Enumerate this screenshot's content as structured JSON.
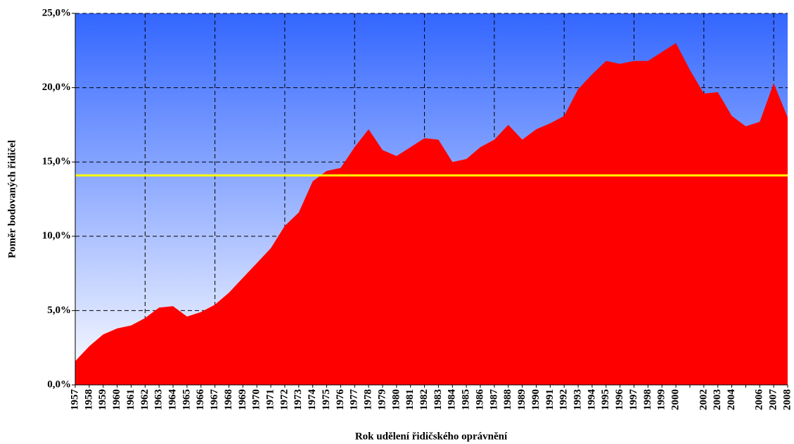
{
  "chart_data": {
    "type": "area",
    "xlabel": "Rok udělení řidičského oprávnění",
    "ylabel": "Poměr bodovaných řidičel",
    "categories": [
      "1957",
      "1958",
      "1959",
      "1960",
      "1961",
      "1962",
      "1963",
      "1964",
      "1965",
      "1966",
      "1967",
      "1968",
      "1969",
      "1970",
      "1971",
      "1972",
      "1973",
      "1974",
      "1975",
      "1976",
      "1977",
      "1978",
      "1979",
      "1980",
      "1981",
      "1982",
      "1983",
      "1984",
      "1985",
      "1986",
      "1987",
      "1988",
      "1989",
      "1990",
      "1991",
      "1992",
      "1993",
      "1994",
      "1995",
      "1996",
      "1997",
      "1998",
      "1999",
      "2000",
      null,
      "2002",
      "2003",
      "2004",
      null,
      "2006",
      "2007",
      "2008"
    ],
    "values": [
      1.6,
      2.6,
      3.4,
      3.8,
      4.0,
      4.5,
      5.2,
      5.3,
      4.6,
      4.9,
      5.4,
      6.2,
      7.2,
      8.2,
      9.2,
      10.7,
      11.6,
      13.7,
      14.4,
      14.6,
      16.0,
      17.2,
      15.8,
      15.4,
      16.0,
      16.6,
      16.5,
      15.0,
      15.2,
      16.0,
      16.5,
      17.5,
      16.5,
      17.2,
      17.6,
      18.1,
      19.9,
      20.9,
      21.8,
      21.6,
      21.8,
      21.8,
      22.4,
      23.0,
      21.2,
      19.6,
      19.7,
      18.1,
      17.4,
      17.7,
      20.3,
      18.0
    ],
    "color": "#ff0000",
    "reference_line": {
      "value": 14.1,
      "color": "#ffff00"
    },
    "ylim": [
      0,
      25
    ],
    "yticks": [
      {
        "value": 0,
        "label": "0,0%"
      },
      {
        "value": 5,
        "label": "5,0%"
      },
      {
        "value": 10,
        "label": "10,0%"
      },
      {
        "value": 15,
        "label": "15,0%"
      },
      {
        "value": 20,
        "label": "20,0%"
      },
      {
        "value": 25,
        "label": "25,0%"
      }
    ],
    "grid": true,
    "xgrid_step": 5,
    "background_gradient": [
      "#3366ff",
      "#ffffff"
    ]
  }
}
